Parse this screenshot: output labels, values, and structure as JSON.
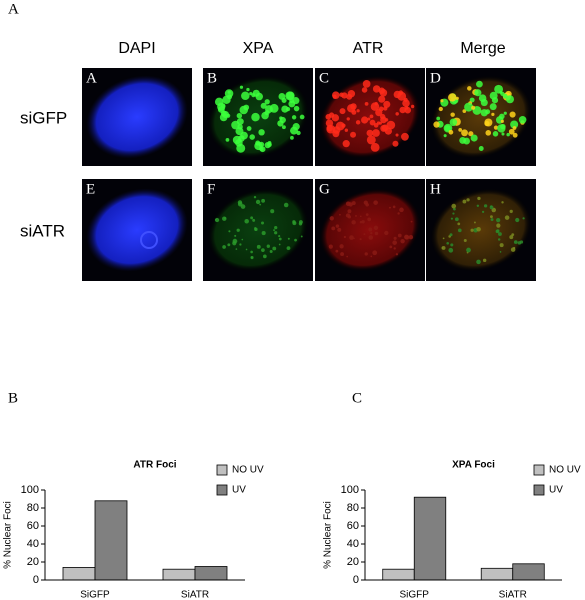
{
  "figure": {
    "panel_label": "A",
    "columns": [
      "DAPI",
      "XPA",
      "ATR",
      "Merge"
    ],
    "rows": [
      "siGFP",
      "siATR"
    ],
    "image_labels": [
      "A",
      "B",
      "C",
      "D",
      "E",
      "F",
      "G",
      "H"
    ]
  },
  "chart_data": [
    {
      "type": "bar",
      "panel_label": "B",
      "title": "ATR Foci",
      "y_label": "% Nuclear Foci",
      "categories": [
        "SiGFP",
        "SiATR"
      ],
      "series": [
        {
          "name": "NO UV",
          "color": "#c0c0c0",
          "values": [
            14,
            12
          ]
        },
        {
          "name": "UV",
          "color": "#808080",
          "values": [
            88,
            15
          ]
        }
      ],
      "ylim": [
        0,
        100
      ],
      "yticks": [
        0,
        20,
        40,
        60,
        80,
        100
      ],
      "legend": "upper right"
    },
    {
      "type": "bar",
      "panel_label": "C",
      "title": "XPA Foci",
      "y_label": "% Nuclear Foci",
      "categories": [
        "SiGFP",
        "SiATR"
      ],
      "series": [
        {
          "name": "NO UV",
          "color": "#c0c0c0",
          "values": [
            12,
            13
          ]
        },
        {
          "name": "UV",
          "color": "#808080",
          "values": [
            92,
            18
          ]
        }
      ],
      "ylim": [
        0,
        100
      ],
      "yticks": [
        0,
        20,
        40,
        60,
        80,
        100
      ],
      "legend": "upper right"
    }
  ]
}
